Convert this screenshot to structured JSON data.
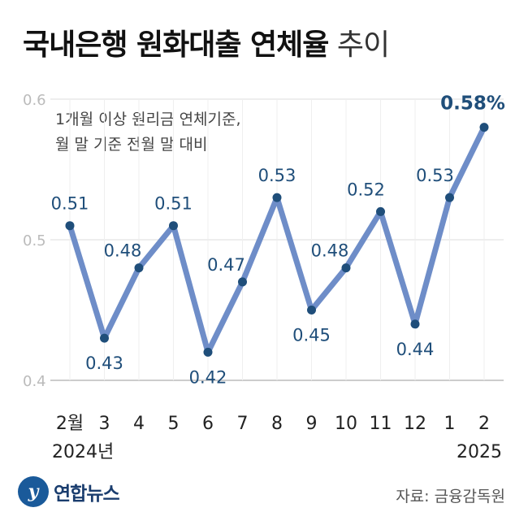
{
  "title": {
    "bold": "국내은행 원화대출 연체율",
    "light": "추이"
  },
  "subtitle": [
    "1개월 이상 원리금 연체기준,",
    "월 말 기준 전월 말 대비"
  ],
  "source": "자료: 금융감독원",
  "logo": {
    "text": "연합뉴스"
  },
  "colors": {
    "line": "#6e8dc8",
    "point": "#1f4e7a",
    "label": "#1f4e7a",
    "axis": "#bbbbbb",
    "grid": "#dddddd"
  },
  "chart_data": {
    "type": "line",
    "categories": [
      "2월",
      "3",
      "4",
      "5",
      "6",
      "7",
      "8",
      "9",
      "10",
      "11",
      "12",
      "1",
      "2"
    ],
    "values": [
      0.51,
      0.43,
      0.48,
      0.51,
      0.42,
      0.47,
      0.53,
      0.45,
      0.48,
      0.52,
      0.44,
      0.53,
      0.58
    ],
    "data_labels": [
      "0.51",
      "0.43",
      "0.48",
      "0.51",
      "0.42",
      "0.47",
      "0.53",
      "0.45",
      "0.48",
      "0.52",
      "0.44",
      "0.53",
      "0.58%"
    ],
    "year_labels": [
      {
        "category": "2월",
        "text": "2024년"
      },
      {
        "category": "2",
        "text": "2025"
      }
    ],
    "y_ticks": [
      "0.4",
      "0.5",
      "0.6"
    ],
    "ylim": [
      0.4,
      0.6
    ],
    "grid": true
  }
}
